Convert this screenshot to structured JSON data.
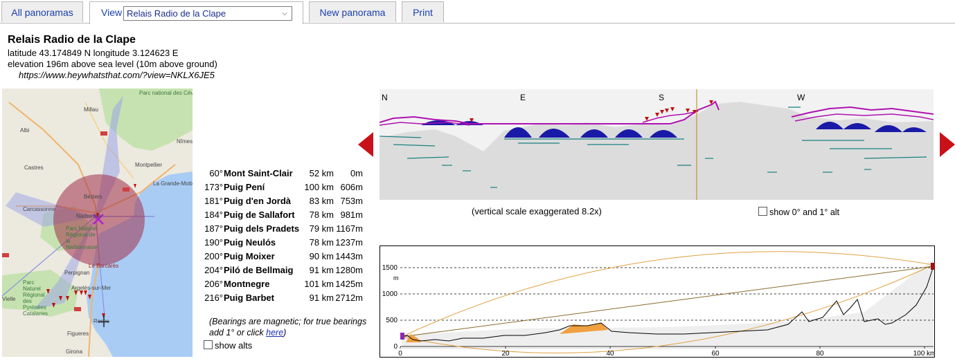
{
  "tabs": {
    "all_panoramas": "All panoramas",
    "view_label": "View",
    "view_selected": "Relais Radio de la Clape",
    "new_panorama": "New panorama",
    "print": "Print"
  },
  "site": {
    "title": "Relais Radio de la Clape",
    "coords": "latitude 43.174849 N longitude 3.124623 E",
    "elevation": "elevation 196m above sea level (10m above ground)",
    "url": "https://www.heywhatsthat.com/?view=NKLX6JE5"
  },
  "map": {
    "labels": {
      "parc_cevennes": "Parc national des Cévennes",
      "millau": "Millau",
      "albi": "Albi",
      "nimes": "Nîmes",
      "castres": "Castres",
      "montpellier": "Montpellier",
      "la_grande_motte": "La Grande-Motte",
      "beziers": "Béziers",
      "carcassonne": "Carcassonne",
      "narbonne": "Narbonne",
      "parc_narbonnaise": "Parc Naturel Régional de la Narbonnaise",
      "la_barcares": "Le Barcarès",
      "perpignan": "Perpignan",
      "parc_pyrenees": "Parc Naturel Régional des Pyrénées Catalanes",
      "argeles": "Argelès-sur-Mer",
      "vielle": "Vielle",
      "figueres": "Figueres",
      "roses": "Roses",
      "girona": "Girona"
    }
  },
  "peaks": [
    {
      "bearing": "60°",
      "name": "Mont Saint-Clair",
      "distance": "52 km",
      "elevation": "0m"
    },
    {
      "bearing": "173°",
      "name": "Puig Pení",
      "distance": "100 km",
      "elevation": "606m"
    },
    {
      "bearing": "181°",
      "name": "Puig d'en Jordà",
      "distance": "83 km",
      "elevation": "753m"
    },
    {
      "bearing": "184°",
      "name": "Puig de Sallafort",
      "distance": "78 km",
      "elevation": "981m"
    },
    {
      "bearing": "187°",
      "name": "Puig dels Pradets",
      "distance": "79 km",
      "elevation": "1167m"
    },
    {
      "bearing": "190°",
      "name": "Puig Neulós",
      "distance": "78 km",
      "elevation": "1237m"
    },
    {
      "bearing": "200°",
      "name": "Puig Moixer",
      "distance": "90 km",
      "elevation": "1443m"
    },
    {
      "bearing": "204°",
      "name": "Piló de Bellmaig",
      "distance": "91 km",
      "elevation": "1280m"
    },
    {
      "bearing": "206°",
      "name": "Montnegre",
      "distance": "101 km",
      "elevation": "1425m"
    },
    {
      "bearing": "216°",
      "name": "Puig Barbet",
      "distance": "91 km",
      "elevation": "2712m"
    }
  ],
  "note": {
    "line1": "(Bearings are magnetic; for true bearings",
    "line2_pre": "add 1° or click ",
    "link": "here",
    "line2_post": ")"
  },
  "show_alts": "show alts",
  "panorama": {
    "compass": [
      "N",
      "E",
      "S",
      "W"
    ],
    "scale_note": "(vertical scale exaggerated 8.2x)",
    "show_alt_lines": "show 0° and 1° alt"
  },
  "profile": {
    "unit": "m",
    "y_ticks": [
      "1500",
      "1000",
      "500",
      "0"
    ],
    "x_ticks": [
      "0",
      "20",
      "40",
      "60",
      "80",
      "100 km"
    ]
  },
  "colors": {
    "tab_link": "#1a3fb0",
    "arrow": "#c8121a",
    "ridge_magenta": "#b010b0",
    "ridge_blue": "#1a1aa8",
    "viewshed": "#a0304a"
  }
}
